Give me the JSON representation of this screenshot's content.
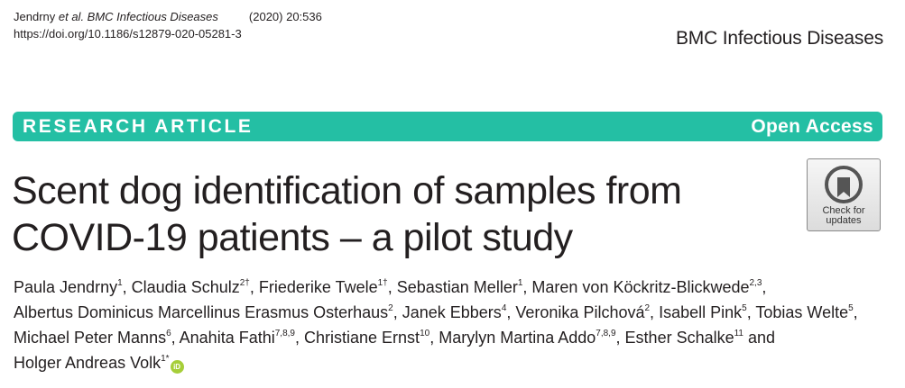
{
  "header": {
    "citation_authors": "Jendrny ",
    "citation_etal_journal": "et al. BMC Infectious Diseases",
    "citation_year": "(2020) 20:536",
    "doi": "https://doi.org/10.1186/s12879-020-05281-3",
    "journal_name": "BMC Infectious Diseases"
  },
  "banner": {
    "article_type": "RESEARCH ARTICLE",
    "access": "Open Access"
  },
  "title_lines": [
    "Scent dog identification of samples from",
    "COVID-19 patients – a pilot study"
  ],
  "check_updates": {
    "line1": "Check for",
    "line2": "updates"
  },
  "authors": [
    [
      {
        "name": "Paula Jendrny",
        "sup": "1",
        "sep": ", "
      },
      {
        "name": "Claudia Schulz",
        "sup": "2†",
        "sep": ", "
      },
      {
        "name": "Friederike Twele",
        "sup": "1†",
        "sep": ", "
      },
      {
        "name": "Sebastian Meller",
        "sup": "1",
        "sep": ", "
      },
      {
        "name": "Maren von Köckritz-Blickwede",
        "sup": "2,3",
        "sep": ","
      }
    ],
    [
      {
        "name": "Albertus Dominicus Marcellinus Erasmus Osterhaus",
        "sup": "2",
        "sep": ", "
      },
      {
        "name": "Janek Ebbers",
        "sup": "4",
        "sep": ", "
      },
      {
        "name": "Veronika Pilchová",
        "sup": "2",
        "sep": ", "
      },
      {
        "name": "Isabell Pink",
        "sup": "5",
        "sep": ", "
      },
      {
        "name": "Tobias Welte",
        "sup": "5",
        "sep": ","
      }
    ],
    [
      {
        "name": "Michael Peter Manns",
        "sup": "6",
        "sep": ", "
      },
      {
        "name": "Anahita Fathi",
        "sup": "7,8,9",
        "sep": ", "
      },
      {
        "name": "Christiane Ernst",
        "sup": "10",
        "sep": ", "
      },
      {
        "name": "Marylyn Martina Addo",
        "sup": "7,8,9",
        "sep": ", "
      },
      {
        "name": "Esther Schalke",
        "sup": "11",
        "sep": " and"
      }
    ],
    [
      {
        "name": "Holger Andreas Volk",
        "sup": "1*",
        "sep": ""
      }
    ]
  ],
  "orcid_label": "iD",
  "colors": {
    "banner": "#24bfa4",
    "orcid": "#a6ce39",
    "text": "#231f20"
  }
}
